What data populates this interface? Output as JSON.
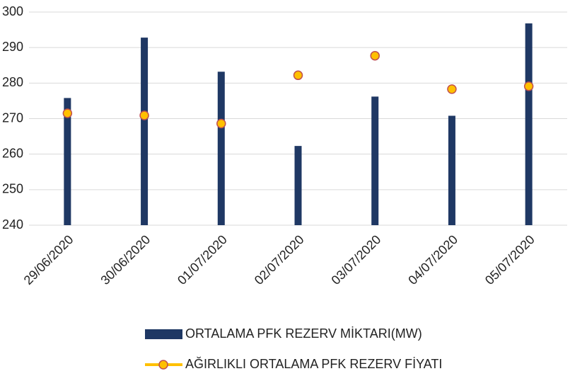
{
  "chart_data": {
    "type": "bar",
    "categories": [
      "29/06/2020",
      "30/06/2020",
      "01/07/2020",
      "02/07/2020",
      "03/07/2020",
      "04/07/2020",
      "05/07/2020"
    ],
    "series": [
      {
        "name": "ORTALAMA PFK REZERV MİKTARI(MW)",
        "type": "bar",
        "color": "#1f3864",
        "values": [
          275.8,
          292.8,
          283.2,
          262.3,
          276.2,
          270.8,
          296.8
        ]
      },
      {
        "name": "AĞIRLIKLI ORTALAMA PFK REZERV FİYATI",
        "type": "line",
        "color": "#ffc000",
        "values": [
          271.5,
          270.9,
          268.6,
          282.2,
          287.7,
          278.3,
          279.1
        ]
      }
    ],
    "ylim": [
      240,
      300
    ],
    "yticks": [
      240,
      250,
      260,
      270,
      280,
      290,
      300
    ],
    "grid": true,
    "legend": "bottom"
  }
}
